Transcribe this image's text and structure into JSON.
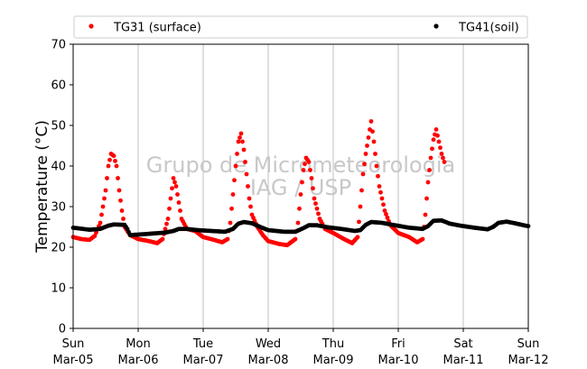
{
  "chart_data": {
    "type": "scatter",
    "title": "",
    "xlabel": "",
    "ylabel": "Temperature (°C)",
    "ylim": [
      0,
      70
    ],
    "yticks": [
      0,
      10,
      20,
      30,
      40,
      50,
      60,
      70
    ],
    "xlim": [
      "2017-03-05",
      "2017-03-12"
    ],
    "xticks": [
      {
        "day": "Sun",
        "date": "Mar-05"
      },
      {
        "day": "Mon",
        "date": "Mar-06"
      },
      {
        "day": "Tue",
        "date": "Mar-07"
      },
      {
        "day": "Wed",
        "date": "Mar-08"
      },
      {
        "day": "Thu",
        "date": "Mar-09"
      },
      {
        "day": "Fri",
        "date": "Mar-10"
      },
      {
        "day": "Sat",
        "date": "Mar-11"
      },
      {
        "day": "Sun",
        "date": "Mar-12"
      }
    ],
    "grid": "vertical",
    "legend_position": "top",
    "watermark": [
      "Grupo de Micrometeorologia",
      "IAG / USP"
    ],
    "series": [
      {
        "name": "TG31 (surface)",
        "color": "#ff0000",
        "points": [
          [
            "2017-03-05 00:00",
            22.5
          ],
          [
            "2017-03-05 03:00",
            22.0
          ],
          [
            "2017-03-05 06:00",
            21.8
          ],
          [
            "2017-03-05 08:00",
            22.8
          ],
          [
            "2017-03-05 10:00",
            26.0
          ],
          [
            "2017-03-05 12:00",
            34.0
          ],
          [
            "2017-03-05 13:00",
            40.0
          ],
          [
            "2017-03-05 14:00",
            43.0
          ],
          [
            "2017-03-05 15:00",
            42.5
          ],
          [
            "2017-03-05 16:00",
            40.0
          ],
          [
            "2017-03-05 17:00",
            34.0
          ],
          [
            "2017-03-05 18:00",
            29.0
          ],
          [
            "2017-03-05 19:00",
            25.0
          ],
          [
            "2017-03-05 21:00",
            23.0
          ],
          [
            "2017-03-06 00:00",
            22.0
          ],
          [
            "2017-03-06 04:00",
            21.5
          ],
          [
            "2017-03-06 07:00",
            21.0
          ],
          [
            "2017-03-06 09:00",
            22.0
          ],
          [
            "2017-03-06 11:00",
            27.0
          ],
          [
            "2017-03-06 12:00",
            32.0
          ],
          [
            "2017-03-06 13:00",
            37.0
          ],
          [
            "2017-03-06 14:00",
            35.0
          ],
          [
            "2017-03-06 15:00",
            31.0
          ],
          [
            "2017-03-06 16:00",
            27.0
          ],
          [
            "2017-03-06 18:00",
            24.5
          ],
          [
            "2017-03-06 21:00",
            24.0
          ],
          [
            "2017-03-07 00:00",
            22.5
          ],
          [
            "2017-03-07 04:00",
            21.8
          ],
          [
            "2017-03-07 07:00",
            21.2
          ],
          [
            "2017-03-07 09:00",
            22.0
          ],
          [
            "2017-03-07 10:00",
            26.0
          ],
          [
            "2017-03-07 11:00",
            33.0
          ],
          [
            "2017-03-07 12:00",
            40.0
          ],
          [
            "2017-03-07 13:00",
            46.0
          ],
          [
            "2017-03-07 14:00",
            48.0
          ],
          [
            "2017-03-07 15:00",
            44.0
          ],
          [
            "2017-03-07 16:00",
            38.0
          ],
          [
            "2017-03-07 17:00",
            32.0
          ],
          [
            "2017-03-07 18:00",
            28.0
          ],
          [
            "2017-03-07 20:00",
            25.0
          ],
          [
            "2017-03-07 22:00",
            23.0
          ],
          [
            "2017-03-08 00:00",
            21.5
          ],
          [
            "2017-03-08 04:00",
            20.8
          ],
          [
            "2017-03-08 07:00",
            20.5
          ],
          [
            "2017-03-08 10:00",
            22.0
          ],
          [
            "2017-03-08 11:00",
            26.0
          ],
          [
            "2017-03-08 12:00",
            33.0
          ],
          [
            "2017-03-08 13:00",
            39.0
          ],
          [
            "2017-03-08 14:00",
            42.0
          ],
          [
            "2017-03-08 15:00",
            41.0
          ],
          [
            "2017-03-08 16:00",
            37.0
          ],
          [
            "2017-03-08 17:00",
            32.0
          ],
          [
            "2017-03-08 19:00",
            27.0
          ],
          [
            "2017-03-08 21:00",
            24.5
          ],
          [
            "2017-03-09 00:00",
            23.5
          ],
          [
            "2017-03-09 04:00",
            22.0
          ],
          [
            "2017-03-09 07:00",
            21.0
          ],
          [
            "2017-03-09 09:00",
            22.5
          ],
          [
            "2017-03-09 10:00",
            30.0
          ],
          [
            "2017-03-09 11:00",
            38.0
          ],
          [
            "2017-03-09 12:00",
            43.0
          ],
          [
            "2017-03-09 13:00",
            47.0
          ],
          [
            "2017-03-09 14:00",
            51.0
          ],
          [
            "2017-03-09 15:00",
            46.0
          ],
          [
            "2017-03-09 16:00",
            40.0
          ],
          [
            "2017-03-09 17:00",
            35.0
          ],
          [
            "2017-03-09 19:00",
            29.0
          ],
          [
            "2017-03-09 21:00",
            25.5
          ],
          [
            "2017-03-10 00:00",
            23.5
          ],
          [
            "2017-03-10 04:00",
            22.5
          ],
          [
            "2017-03-10 07:00",
            21.2
          ],
          [
            "2017-03-10 09:00",
            22.0
          ],
          [
            "2017-03-10 10:00",
            28.0
          ],
          [
            "2017-03-10 11:00",
            36.0
          ],
          [
            "2017-03-10 12:00",
            42.0
          ],
          [
            "2017-03-10 13:00",
            46.5
          ],
          [
            "2017-03-10 14:00",
            49.0
          ],
          [
            "2017-03-10 15:00",
            46.0
          ],
          [
            "2017-03-10 16:00",
            43.0
          ],
          [
            "2017-03-10 17:00",
            41.0
          ]
        ]
      },
      {
        "name": "TG41(soil)",
        "color": "#000000",
        "points": [
          [
            "2017-03-05 00:00",
            24.8
          ],
          [
            "2017-03-05 06:00",
            24.3
          ],
          [
            "2017-03-05 10:00",
            24.5
          ],
          [
            "2017-03-05 13:00",
            25.3
          ],
          [
            "2017-03-05 15:00",
            25.6
          ],
          [
            "2017-03-05 19:00",
            25.5
          ],
          [
            "2017-03-05 20:00",
            24.5
          ],
          [
            "2017-03-05 21:00",
            23.0
          ],
          [
            "2017-03-06 00:00",
            23.1
          ],
          [
            "2017-03-06 06:00",
            23.4
          ],
          [
            "2017-03-06 10:00",
            23.6
          ],
          [
            "2017-03-06 13:00",
            24.0
          ],
          [
            "2017-03-06 15:00",
            24.5
          ],
          [
            "2017-03-06 18:00",
            24.5
          ],
          [
            "2017-03-06 22:00",
            24.2
          ],
          [
            "2017-03-07 03:00",
            24.0
          ],
          [
            "2017-03-07 08:00",
            23.8
          ],
          [
            "2017-03-07 11:00",
            24.5
          ],
          [
            "2017-03-07 13:00",
            25.8
          ],
          [
            "2017-03-07 15:00",
            26.2
          ],
          [
            "2017-03-07 18:00",
            25.9
          ],
          [
            "2017-03-07 21:00",
            25.0
          ],
          [
            "2017-03-08 00:00",
            24.2
          ],
          [
            "2017-03-08 06:00",
            23.8
          ],
          [
            "2017-03-08 10:00",
            23.8
          ],
          [
            "2017-03-08 13:00",
            24.7
          ],
          [
            "2017-03-08 15:00",
            25.4
          ],
          [
            "2017-03-08 18:00",
            25.4
          ],
          [
            "2017-03-08 22:00",
            24.9
          ],
          [
            "2017-03-09 03:00",
            24.5
          ],
          [
            "2017-03-09 08:00",
            24.0
          ],
          [
            "2017-03-09 10:00",
            24.2
          ],
          [
            "2017-03-09 12:00",
            25.5
          ],
          [
            "2017-03-09 14:00",
            26.2
          ],
          [
            "2017-03-09 18:00",
            26.0
          ],
          [
            "2017-03-09 22:00",
            25.5
          ],
          [
            "2017-03-10 04:00",
            24.8
          ],
          [
            "2017-03-10 09:00",
            24.5
          ],
          [
            "2017-03-10 11:00",
            25.2
          ],
          [
            "2017-03-10 13:00",
            26.5
          ],
          [
            "2017-03-10 16:00",
            26.6
          ],
          [
            "2017-03-10 19:00",
            25.8
          ],
          [
            "2017-03-10 23:00",
            25.3
          ],
          [
            "2017-03-11 04:00",
            24.8
          ],
          [
            "2017-03-11 09:00",
            24.4
          ],
          [
            "2017-03-11 11:00",
            25.0
          ],
          [
            "2017-03-11 13:00",
            26.0
          ],
          [
            "2017-03-11 16:00",
            26.3
          ],
          [
            "2017-03-11 19:00",
            25.9
          ],
          [
            "2017-03-11 23:00",
            25.3
          ],
          [
            "2017-03-12 00:00",
            25.2
          ]
        ]
      }
    ]
  }
}
